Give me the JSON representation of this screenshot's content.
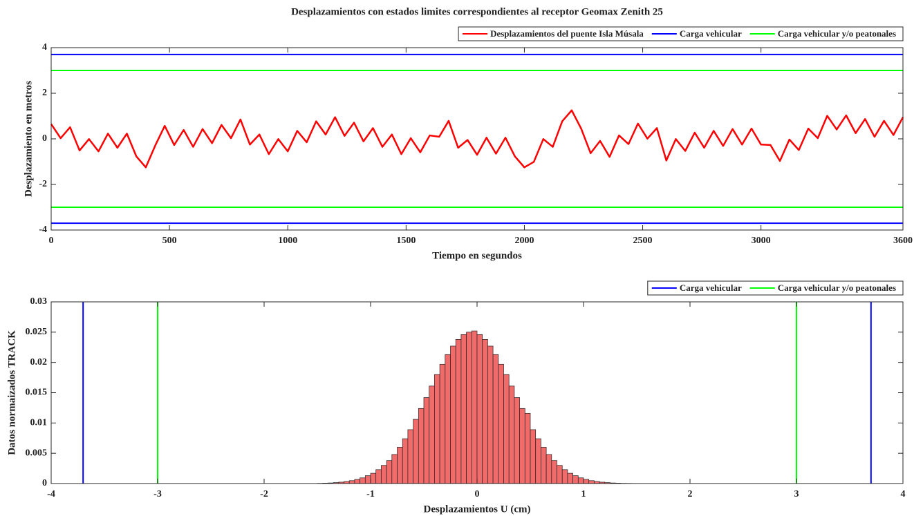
{
  "chart_data": [
    {
      "type": "line",
      "title": "Desplazamientos con estados limites correspondientes al receptor Geomax Zenith 25",
      "xlabel": "Tiempo en segundos",
      "ylabel": "Desplazamiento en metros",
      "x": [
        0,
        40,
        80,
        120,
        160,
        200,
        240,
        280,
        320,
        360,
        400,
        440,
        480,
        520,
        560,
        600,
        640,
        680,
        720,
        760,
        800,
        840,
        880,
        920,
        960,
        1000,
        1040,
        1080,
        1120,
        1160,
        1200,
        1240,
        1280,
        1320,
        1360,
        1400,
        1440,
        1480,
        1520,
        1560,
        1600,
        1640,
        1680,
        1720,
        1760,
        1800,
        1840,
        1880,
        1920,
        1960,
        2000,
        2040,
        2080,
        2120,
        2160,
        2200,
        2240,
        2280,
        2320,
        2360,
        2400,
        2440,
        2480,
        2520,
        2560,
        2600,
        2640,
        2680,
        2720,
        2760,
        2800,
        2840,
        2880,
        2920,
        2960,
        3000,
        3040,
        3080,
        3120,
        3160,
        3200,
        3240,
        3280,
        3320,
        3360,
        3400,
        3440,
        3480,
        3520,
        3560,
        3600
      ],
      "series": [
        {
          "name": "Desplazamientos del puente Isla Músala",
          "color": "#ff0000",
          "values": [
            0.65,
            0.03,
            0.51,
            -0.51,
            -0.01,
            -0.55,
            0.23,
            -0.39,
            0.23,
            -0.77,
            -1.25,
            -0.29,
            0.57,
            -0.27,
            0.39,
            -0.35,
            0.43,
            -0.19,
            0.61,
            0.03,
            0.85,
            -0.25,
            0.19,
            -0.67,
            -0.01,
            -0.55,
            0.35,
            -0.15,
            0.77,
            0.19,
            0.95,
            0.13,
            0.71,
            -0.11,
            0.47,
            -0.35,
            0.19,
            -0.67,
            0.03,
            -0.59,
            0.15,
            0.09,
            0.79,
            -0.39,
            -0.05,
            -0.7,
            0.05,
            -0.65,
            0.05,
            -0.77,
            -1.25,
            -1.01,
            -0.01,
            -0.35,
            0.77,
            1.25,
            0.45,
            -0.63,
            -0.09,
            -0.79,
            0.15,
            -0.23,
            0.67,
            0.01,
            0.47,
            -0.95,
            -0.01,
            -0.53,
            0.27,
            -0.39,
            0.35,
            -0.31,
            0.43,
            -0.25,
            0.45,
            -0.25,
            -0.27,
            -0.97,
            -0.03,
            -0.49,
            0.45,
            0.03,
            1.01,
            0.41,
            1.03,
            0.25,
            0.87,
            0.09,
            0.79,
            0.17,
            0.95
          ]
        }
      ],
      "hlines": [
        {
          "name": "Carga vehicular",
          "color": "#0000ff",
          "values": [
            3.7,
            -3.7
          ]
        },
        {
          "name": "Carga vehicular y/o peatonales",
          "color": "#00ff00",
          "values": [
            3,
            -3
          ]
        }
      ],
      "xlim": [
        0,
        3600
      ],
      "xticks": [
        0,
        500,
        1000,
        1500,
        2000,
        2500,
        3000,
        3600
      ],
      "ylim": [
        -4,
        4
      ],
      "yticks": [
        -4,
        -2,
        0,
        2,
        4
      ],
      "legend": "upper right"
    },
    {
      "type": "histogram",
      "xlabel": "Desplazamientos  U (cm)",
      "ylabel": "Datos normaizados TRACK",
      "bins": [
        -1.5,
        -1.45,
        -1.4,
        -1.35,
        -1.3,
        -1.25,
        -1.2,
        -1.15,
        -1.1,
        -1.05,
        -1,
        -0.95,
        -0.9,
        -0.85,
        -0.8,
        -0.75,
        -0.7,
        -0.65,
        -0.6,
        -0.55,
        -0.5,
        -0.45,
        -0.4,
        -0.35,
        -0.3,
        -0.25,
        -0.2,
        -0.15,
        -0.1,
        -0.05,
        0,
        0.05,
        0.1,
        0.15,
        0.2,
        0.25,
        0.3,
        0.35,
        0.4,
        0.45,
        0.5,
        0.55,
        0.6,
        0.65,
        0.7,
        0.75,
        0.8,
        0.85,
        0.9,
        0.95,
        1,
        1.05,
        1.1,
        1.15,
        1.2,
        1.25,
        1.3,
        1.35,
        1.4,
        1.45,
        1.5
      ],
      "values": [
        4e-05,
        7e-05,
        0.0001,
        0.00016,
        0.00023,
        0.00034,
        0.00048,
        0.00068,
        0.00094,
        0.0013,
        0.0017,
        0.0023,
        0.003,
        0.0038,
        0.0048,
        0.006,
        0.0074,
        0.0089,
        0.0106,
        0.0124,
        0.0142,
        0.0161,
        0.018,
        0.0197,
        0.0213,
        0.0227,
        0.0238,
        0.0246,
        0.025,
        0.0252,
        0.0246,
        0.0238,
        0.0227,
        0.0213,
        0.0197,
        0.018,
        0.0161,
        0.0142,
        0.0124,
        0.0116,
        0.0089,
        0.0074,
        0.006,
        0.0048,
        0.0038,
        0.003,
        0.0023,
        0.0017,
        0.0013,
        0.00094,
        0.00068,
        0.00048,
        0.00034,
        0.00023,
        0.00016,
        0.0001,
        7e-05,
        4e-05,
        3e-05,
        2e-05
      ],
      "color": "#f26b6b",
      "vlines": [
        {
          "name": "Carga vehicular",
          "color": "#0000ff",
          "values": [
            -3.7,
            3.7
          ]
        },
        {
          "name": "Carga vehicular y/o peatonales",
          "color": "#00ff00",
          "values": [
            -3,
            3
          ]
        }
      ],
      "xlim": [
        -4,
        4
      ],
      "xticks": [
        -4,
        -3,
        -2,
        -1,
        0,
        1,
        2,
        3,
        4
      ],
      "ylim": [
        0,
        0.03
      ],
      "yticks": [
        0,
        0.005,
        0.01,
        0.015,
        0.02,
        0.025,
        0.03
      ],
      "legend": "upper right"
    }
  ]
}
